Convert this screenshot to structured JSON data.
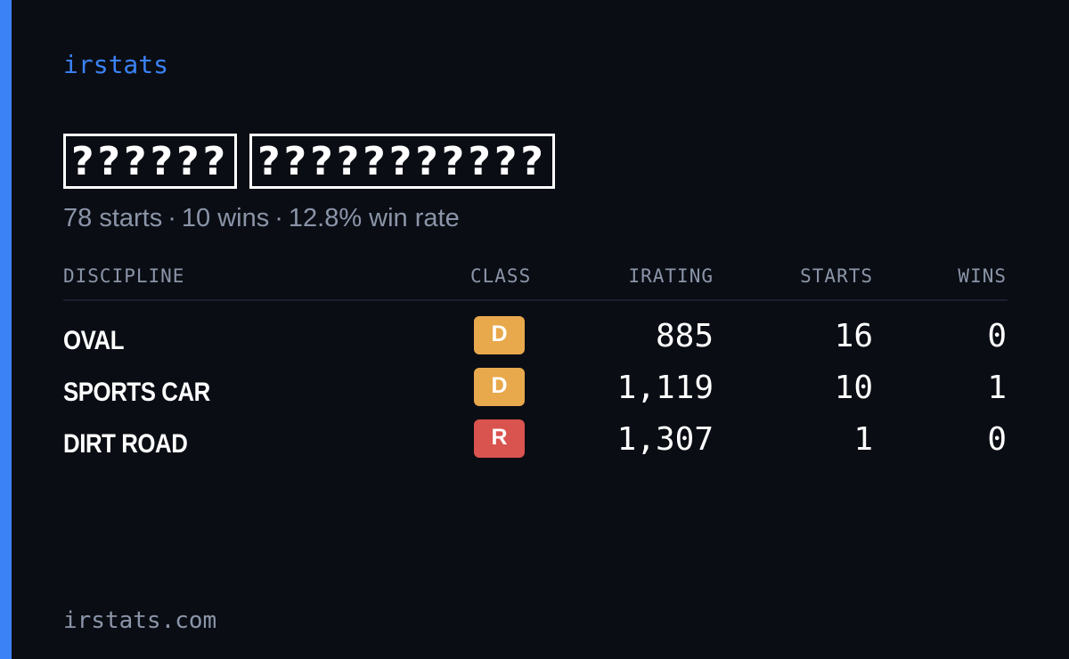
{
  "brand": "irstats",
  "driver": {
    "name_part1": "??????",
    "name_part2": "???????????"
  },
  "summary": {
    "starts": "78 starts",
    "wins": "10 wins",
    "win_rate": "12.8% win rate",
    "separator": "·"
  },
  "table": {
    "headers": {
      "discipline": "DISCIPLINE",
      "class": "CLASS",
      "irating": "IRATING",
      "starts": "STARTS",
      "wins": "WINS"
    },
    "rows": [
      {
        "discipline": "OVAL",
        "class": "D",
        "class_color": "#e8a84c",
        "irating": "885",
        "starts": "16",
        "wins": "0"
      },
      {
        "discipline": "SPORTS CAR",
        "class": "D",
        "class_color": "#e8a84c",
        "irating": "1,119",
        "starts": "10",
        "wins": "1"
      },
      {
        "discipline": "DIRT ROAD",
        "class": "R",
        "class_color": "#d9534f",
        "irating": "1,307",
        "starts": "1",
        "wins": "0"
      }
    ]
  },
  "footer": {
    "url": "irstats.com"
  },
  "colors": {
    "accent": "#3b82f6",
    "background": "#0a0d14",
    "muted": "#8b95a8",
    "class_d": "#e8a84c",
    "class_r": "#d9534f"
  }
}
